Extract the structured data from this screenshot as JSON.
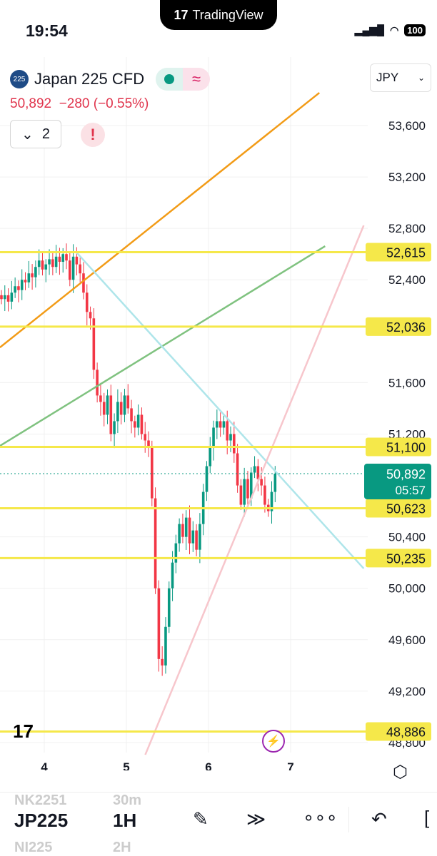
{
  "status_bar": {
    "time": "19:54",
    "app_badge": "TradingView",
    "battery": "100"
  },
  "header": {
    "logo": "225",
    "title": "Japan 225 CFD",
    "price": "50,892",
    "change": "−280 (−0.55%)",
    "indicators_count": "2",
    "currency": "JPY",
    "alert": "!",
    "market_open_color": "#089981"
  },
  "chart_data": {
    "type": "candlestick",
    "interval": "1H",
    "x_ticks": [
      "4",
      "5",
      "6",
      "7"
    ],
    "y_ticks": [
      "53,600",
      "53,200",
      "52,800",
      "52,400",
      "51,600",
      "51,200",
      "50,400",
      "50,000",
      "49,600",
      "49,200",
      "48,800"
    ],
    "ylim": [
      48800,
      53800
    ],
    "closes": [
      52250,
      52280,
      52230,
      52300,
      52350,
      52320,
      52400,
      52380,
      52450,
      52420,
      52500,
      52550,
      52480,
      52520,
      52560,
      52500,
      52580,
      52540,
      52600,
      52550,
      52400,
      52580,
      52520,
      52450,
      52300,
      52150,
      52100,
      51700,
      51500,
      51450,
      51350,
      51500,
      51200,
      51300,
      51450,
      51350,
      51500,
      51400,
      51300,
      51250,
      51350,
      51200,
      51150,
      51100,
      50700,
      50000,
      49450,
      49400,
      49700,
      50000,
      50200,
      50350,
      50500,
      50400,
      50550,
      50350,
      50450,
      50300,
      50500,
      50750,
      50950,
      51100,
      51250,
      51300,
      51250,
      51300,
      51150,
      51200,
      51050,
      50800,
      50650,
      50850,
      50700,
      50900,
      50950,
      50850,
      50800,
      50650,
      50600,
      50750,
      50892
    ],
    "horizontal_levels": [
      {
        "value": 52615,
        "label": "52,615"
      },
      {
        "value": 52036,
        "label": "52,036"
      },
      {
        "value": 51100,
        "label": "51,100"
      },
      {
        "value": 50623,
        "label": "50,623"
      },
      {
        "value": 50235,
        "label": "50,235"
      },
      {
        "value": 48886,
        "label": "48,886"
      }
    ],
    "trend_lines": [
      {
        "color": "#f29b16",
        "from": [
          3.46,
          51874
        ],
        "to": [
          7.35,
          53855
        ]
      },
      {
        "color": "#7fc27f",
        "from": [
          3.46,
          51108
        ],
        "to": [
          7.42,
          52662
        ]
      },
      {
        "color": "#aee5ea",
        "from": [
          4.39,
          52615
        ],
        "to": [
          7.89,
          50154
        ]
      },
      {
        "color": "#f7c6cc",
        "from": [
          5.23,
          48705
        ],
        "to": [
          7.89,
          52823
        ]
      }
    ],
    "last_price": {
      "value": 50892,
      "label": "50,892",
      "countdown": "05:57",
      "color": "#089981"
    },
    "level_color": "#f5e84a",
    "up_color": "#089981",
    "down_color": "#f23645"
  },
  "bottom_bar": {
    "symbol": "JP225",
    "symbol_prev": "NK2251",
    "symbol_next": "NI225",
    "interval": "1H",
    "interval_prev": "30m",
    "interval_next": "2H"
  }
}
